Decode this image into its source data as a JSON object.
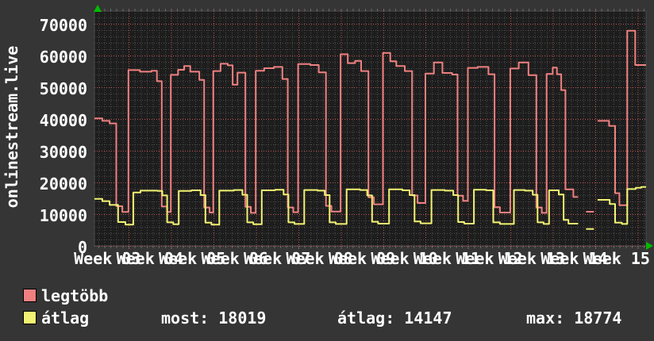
{
  "chart_data": {
    "type": "line",
    "style": "rrdtool-step-graph",
    "title": "",
    "ylabel": "onlinestream.live",
    "xlabel": "",
    "ylim": [
      0,
      74000
    ],
    "y_ticks": [
      "0",
      "10000",
      "20000",
      "30000",
      "40000",
      "50000",
      "60000",
      "70000"
    ],
    "y_tick_values": [
      0,
      10000,
      20000,
      30000,
      40000,
      50000,
      60000,
      70000
    ],
    "x_tick_labels": [
      "Week 03",
      "Week 04",
      "Week 05",
      "Week 06",
      "Week 07",
      "Week 08",
      "Week 09",
      "Week 10",
      "Week 11",
      "Week 12",
      "Week 13",
      "Week 14",
      "Week 15"
    ],
    "x_unit": "days",
    "x_range": [
      0,
      91
    ],
    "days_per_week": 7,
    "first_week_gridline_day": 5.63,
    "grid": "dotted; gray minor (2000 / 1 day), red major (10000 / 1 week)",
    "legend_position": "bottom-left",
    "series": [
      {
        "name": "legtöbb",
        "color": "#f08080",
        "points_day_value": [
          [
            0,
            40200
          ],
          [
            1.3,
            39400
          ],
          [
            2.5,
            38600
          ],
          [
            3.6,
            12500
          ],
          [
            4.6,
            10700
          ],
          [
            5.6,
            55400
          ],
          [
            7.5,
            54900
          ],
          [
            9.4,
            55200
          ],
          [
            10.3,
            51900
          ],
          [
            11.1,
            12400
          ],
          [
            12.0,
            10700
          ],
          [
            12.6,
            53900
          ],
          [
            13.8,
            55500
          ],
          [
            14.8,
            56700
          ],
          [
            15.8,
            54900
          ],
          [
            17.3,
            52300
          ],
          [
            18.1,
            12100
          ],
          [
            19.0,
            10500
          ],
          [
            19.6,
            55100
          ],
          [
            20.8,
            57400
          ],
          [
            22.0,
            56900
          ],
          [
            22.8,
            50800
          ],
          [
            23.6,
            54600
          ],
          [
            24.9,
            12300
          ],
          [
            25.8,
            10400
          ],
          [
            26.6,
            55200
          ],
          [
            28.0,
            56000
          ],
          [
            29.6,
            56400
          ],
          [
            31.0,
            52600
          ],
          [
            31.9,
            12100
          ],
          [
            32.8,
            10600
          ],
          [
            33.6,
            57300
          ],
          [
            35.6,
            57000
          ],
          [
            37.0,
            54700
          ],
          [
            38.2,
            12600
          ],
          [
            39.1,
            10800
          ],
          [
            40.6,
            60400
          ],
          [
            41.8,
            57600
          ],
          [
            43.0,
            58300
          ],
          [
            44.0,
            55100
          ],
          [
            45.2,
            15300
          ],
          [
            46.1,
            13100
          ],
          [
            47.6,
            60800
          ],
          [
            48.8,
            58200
          ],
          [
            49.8,
            56700
          ],
          [
            51.2,
            55100
          ],
          [
            52.4,
            15900
          ],
          [
            53.3,
            13500
          ],
          [
            54.6,
            54300
          ],
          [
            56.0,
            57800
          ],
          [
            57.4,
            54500
          ],
          [
            59.0,
            54000
          ],
          [
            59.9,
            15800
          ],
          [
            60.8,
            14200
          ],
          [
            61.6,
            56100
          ],
          [
            63.2,
            56400
          ],
          [
            65.0,
            54100
          ],
          [
            66.0,
            12200
          ],
          [
            66.9,
            10500
          ],
          [
            68.6,
            55900
          ],
          [
            70.0,
            57800
          ],
          [
            71.6,
            53800
          ],
          [
            72.9,
            12100
          ],
          [
            73.8,
            10400
          ],
          [
            74.6,
            54200
          ],
          [
            75.6,
            56200
          ],
          [
            76.3,
            54100
          ],
          [
            77.0,
            49100
          ],
          [
            77.7,
            17800
          ],
          [
            79.0,
            15400
          ],
          [
            79.8,
            null
          ],
          [
            81.1,
            10750
          ],
          [
            82.4,
            null
          ],
          [
            83.0,
            39400
          ],
          [
            84.9,
            37800
          ],
          [
            85.9,
            16600
          ],
          [
            86.6,
            12800
          ],
          [
            87.9,
            67800
          ],
          [
            89.2,
            57000
          ],
          [
            91,
            57000
          ]
        ]
      },
      {
        "name": "átlag",
        "color": "#f2f272",
        "points_day_value": [
          [
            0,
            14800
          ],
          [
            1.3,
            14100
          ],
          [
            2.5,
            12900
          ],
          [
            3.9,
            7500
          ],
          [
            5.1,
            6700
          ],
          [
            6.4,
            16800
          ],
          [
            7.6,
            17400
          ],
          [
            10.4,
            17300
          ],
          [
            11.2,
            15900
          ],
          [
            12.0,
            7400
          ],
          [
            13.0,
            6800
          ],
          [
            13.9,
            17300
          ],
          [
            16.0,
            17500
          ],
          [
            17.5,
            16000
          ],
          [
            18.3,
            7300
          ],
          [
            19.3,
            6700
          ],
          [
            20.6,
            17400
          ],
          [
            23.0,
            17600
          ],
          [
            24.4,
            16100
          ],
          [
            25.2,
            7400
          ],
          [
            26.2,
            6800
          ],
          [
            27.6,
            17500
          ],
          [
            29.8,
            17700
          ],
          [
            31.2,
            16200
          ],
          [
            32.0,
            7400
          ],
          [
            33.0,
            6900
          ],
          [
            34.6,
            17600
          ],
          [
            36.8,
            17400
          ],
          [
            38.0,
            16000
          ],
          [
            38.8,
            7400
          ],
          [
            39.8,
            6900
          ],
          [
            41.6,
            17800
          ],
          [
            43.8,
            17600
          ],
          [
            45.0,
            15900
          ],
          [
            45.8,
            7600
          ],
          [
            46.8,
            7000
          ],
          [
            48.6,
            17800
          ],
          [
            50.8,
            17500
          ],
          [
            52.0,
            16000
          ],
          [
            52.8,
            7700
          ],
          [
            53.8,
            7100
          ],
          [
            55.6,
            17600
          ],
          [
            57.8,
            17400
          ],
          [
            59.2,
            16000
          ],
          [
            60.0,
            7500
          ],
          [
            61.0,
            7000
          ],
          [
            62.6,
            17700
          ],
          [
            64.6,
            17500
          ],
          [
            65.8,
            7400
          ],
          [
            66.9,
            6900
          ],
          [
            69.2,
            17600
          ],
          [
            71.0,
            17400
          ],
          [
            72.3,
            16100
          ],
          [
            73.1,
            7400
          ],
          [
            74.1,
            6900
          ],
          [
            75.0,
            17500
          ],
          [
            76.6,
            16200
          ],
          [
            77.4,
            8200
          ],
          [
            78.2,
            7000
          ],
          [
            79.8,
            null
          ],
          [
            81.1,
            5300
          ],
          [
            82.4,
            null
          ],
          [
            83.0,
            14500
          ],
          [
            85.0,
            13200
          ],
          [
            85.9,
            7300
          ],
          [
            87.0,
            6900
          ],
          [
            87.9,
            17900
          ],
          [
            89.3,
            18300
          ],
          [
            90.2,
            18550
          ],
          [
            91,
            18550
          ]
        ]
      }
    ]
  },
  "legend": {
    "items": [
      {
        "label": "legtöbb",
        "color": "#f08080"
      },
      {
        "label": "átlag",
        "color": "#f2f272"
      }
    ]
  },
  "stats": {
    "items": [
      {
        "label": "most:",
        "value": "18019"
      },
      {
        "label": "átlag:",
        "value": "14147"
      },
      {
        "label": "max:",
        "value": "18774"
      }
    ]
  },
  "colors": {
    "background_outer": "#353535",
    "background_plot": "#1d1d1d",
    "grid_minor": "#4d4d4d",
    "grid_major": "#c05555",
    "text": "#ffffff",
    "axis_arrow": "#00bb00"
  }
}
